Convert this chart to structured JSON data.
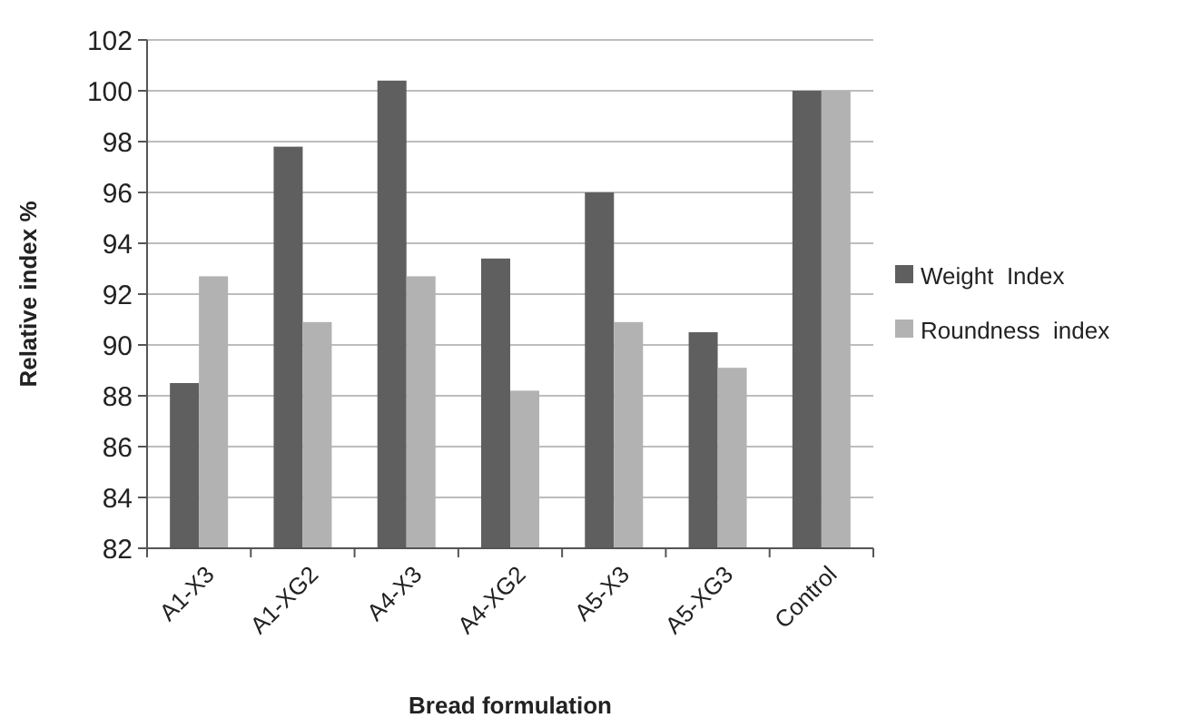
{
  "chart_data": {
    "type": "bar",
    "xlabel": "Bread formulation",
    "ylabel": "Relative index %",
    "categories": [
      "A1-X3",
      "A1-XG2",
      "A4-X3",
      "A4-XG2",
      "A5-X3",
      "A5-XG3",
      "Control"
    ],
    "series": [
      {
        "name": "Weight  Index",
        "color": "#5f5f5f",
        "values": [
          88.5,
          97.8,
          100.4,
          93.4,
          96.0,
          90.5,
          100
        ]
      },
      {
        "name": "Roundness  index",
        "color": "#b2b2b2",
        "values": [
          92.7,
          90.9,
          92.7,
          88.2,
          90.9,
          89.1,
          100
        ]
      }
    ],
    "ylim": [
      82,
      102
    ],
    "yticks": [
      82,
      84,
      86,
      88,
      90,
      92,
      94,
      96,
      98,
      100,
      102
    ],
    "grid": "y",
    "legend": "right"
  }
}
